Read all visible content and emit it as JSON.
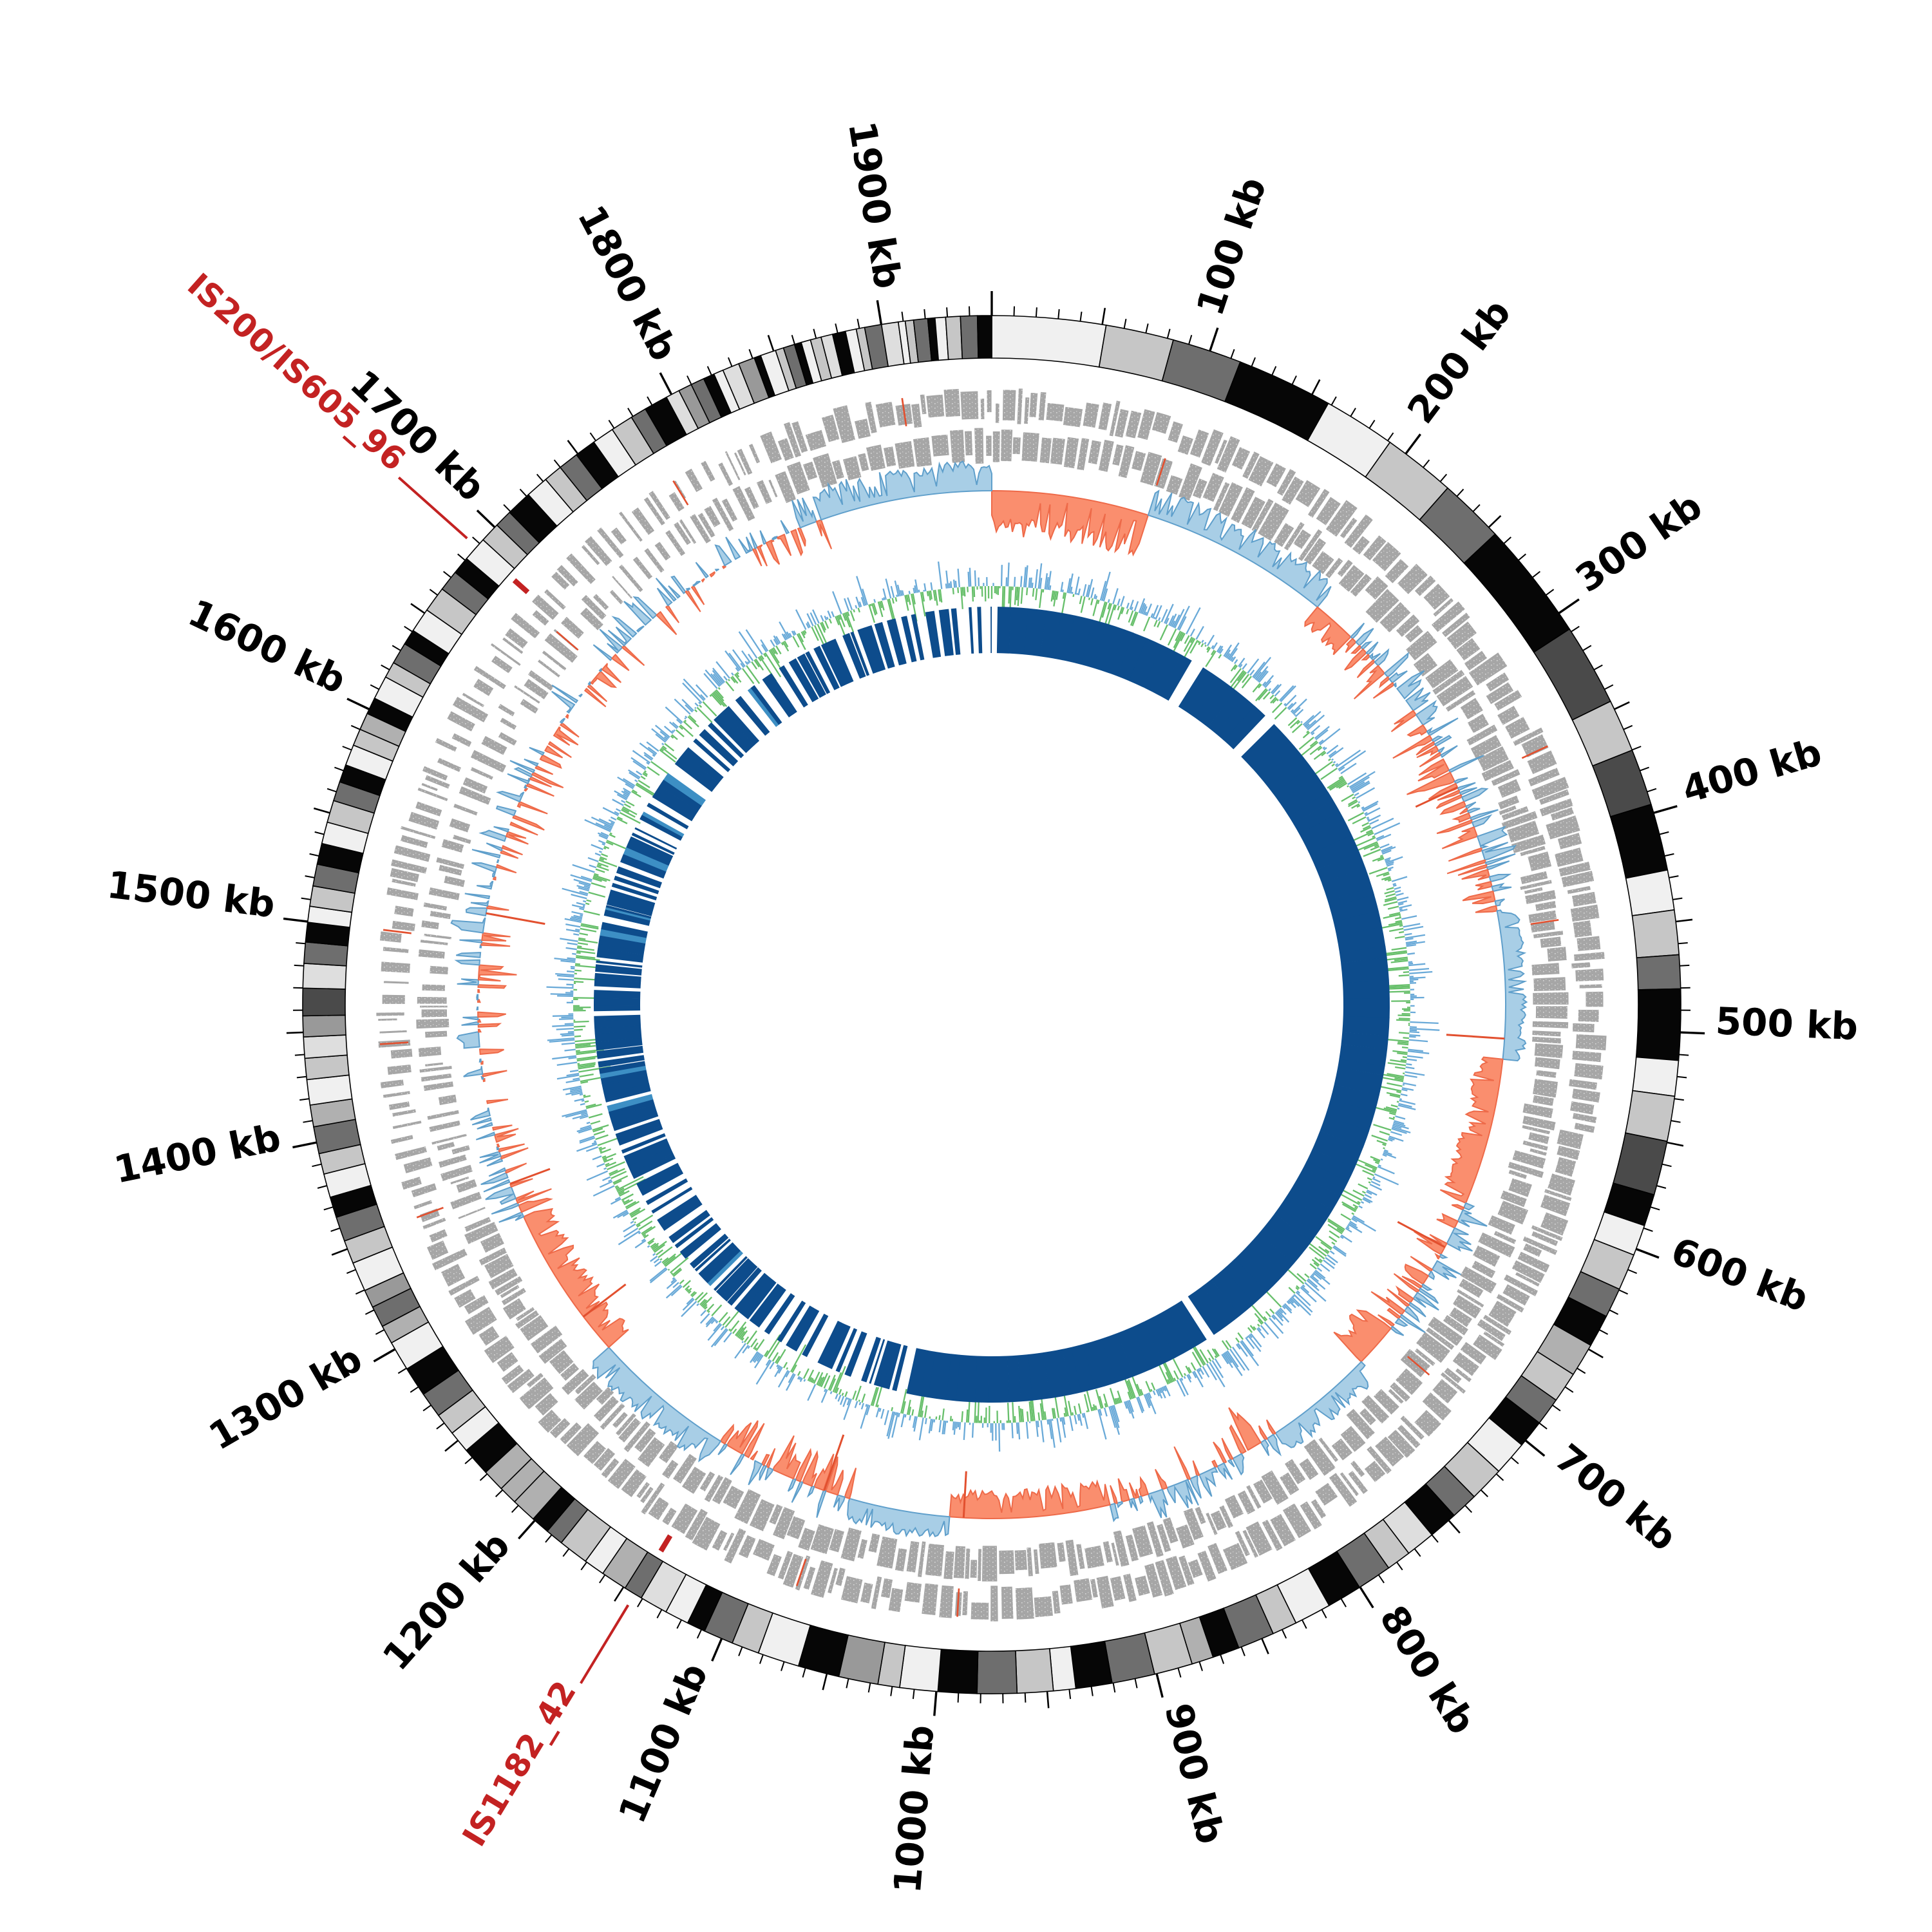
{
  "figure": {
    "kind": "circular genome map",
    "background": "#ffffff"
  },
  "chart_data": {
    "type": "circular_genome_map",
    "genome_length_bp": 1950000,
    "orientation": {
      "zero_position": "top",
      "direction": "clockwise"
    },
    "seed": 7,
    "axis": {
      "unit": "kb",
      "minor_tick_interval_bp": 10000,
      "mid_tick_interval_bp": 50000,
      "major_tick_interval_bp": 100000,
      "tick_labels": [
        {
          "bp": 100000,
          "text": "100 kb"
        },
        {
          "bp": 200000,
          "text": "200 kb"
        },
        {
          "bp": 300000,
          "text": "300 kb"
        },
        {
          "bp": 400000,
          "text": "400 kb"
        },
        {
          "bp": 500000,
          "text": "500 kb"
        },
        {
          "bp": 600000,
          "text": "600 kb"
        },
        {
          "bp": 700000,
          "text": "700 kb"
        },
        {
          "bp": 800000,
          "text": "800 kb"
        },
        {
          "bp": 900000,
          "text": "900 kb"
        },
        {
          "bp": 1000000,
          "text": "1000 kb"
        },
        {
          "bp": 1100000,
          "text": "1100 kb"
        },
        {
          "bp": 1200000,
          "text": "1200 kb"
        },
        {
          "bp": 1300000,
          "text": "1300 kb"
        },
        {
          "bp": 1400000,
          "text": "1400 kb"
        },
        {
          "bp": 1500000,
          "text": "1500 kb"
        },
        {
          "bp": 1600000,
          "text": "1600 kb"
        },
        {
          "bp": 1700000,
          "text": "1700 kb"
        },
        {
          "bp": 1800000,
          "text": "1800 kb"
        },
        {
          "bp": 1900000,
          "text": "1900 kb"
        }
      ]
    },
    "annotations": [
      {
        "label": "IS200/IS605_96",
        "position_bp": 1688000
      },
      {
        "label": "IS1182_42",
        "position_bp": 1144000
      }
    ],
    "tracks": [
      {
        "id": "contig-ring",
        "name": "assembly contigs (grayscale blocks, outermost ring)",
        "palette_cycle": [
          "#c6c6c6",
          "#6e6e6e",
          "#060606",
          "#f0f0f0"
        ],
        "extra_shades": [
          "#999999",
          "#4a4a4a",
          "#dedede",
          "#b0b0b0"
        ],
        "size_regions_kb": [
          [
            0,
            330,
            25,
            60
          ],
          [
            330,
            560,
            14,
            34
          ],
          [
            560,
            870,
            11,
            17
          ],
          [
            870,
            1080,
            9,
            20
          ],
          [
            1080,
            1480,
            8,
            14
          ],
          [
            1480,
            1790,
            7,
            12
          ],
          [
            1790,
            1955,
            3,
            8
          ]
        ]
      },
      {
        "id": "cds-outer",
        "name": "CDS forward strand (gray blocks)",
        "sparse_region_kb": [
          1335,
          1825
        ]
      },
      {
        "id": "cds-inner",
        "name": "CDS reverse strand (gray blocks)",
        "sparse_region_kb": [
          1335,
          1825
        ]
      },
      {
        "id": "skew",
        "name": "GC skew (blue = positive/outward, orange = negative/inward)",
        "features_kb": [
          [
            0,
            95,
            -1,
            0.95
          ],
          [
            95,
            212,
            1,
            0.8
          ],
          [
            212,
            240,
            -1,
            0.5
          ],
          [
            430,
            520,
            1,
            0.6
          ],
          [
            520,
            610,
            -1,
            0.6
          ],
          [
            700,
            726,
            -1,
            0.85
          ],
          [
            726,
            790,
            1,
            0.65
          ],
          [
            905,
            1000,
            -1,
            0.6
          ],
          [
            1000,
            1062,
            1,
            0.65
          ],
          [
            1150,
            1235,
            1,
            0.8
          ],
          [
            1235,
            1330,
            -1,
            0.7
          ],
          [
            1845,
            1952,
            1,
            0.85
          ]
        ],
        "red_spikes_kb": [
          352,
          508,
          992,
          1078,
          1260,
          1352,
          1518,
          640
        ]
      },
      {
        "id": "gc-line",
        "name": "GC content deviation (blue = above/outward, green = below/inward)"
      },
      {
        "id": "inner-ring",
        "name": "reference alignment / coverage ring (navy, white = missing)",
        "gap_regions_kb": [
          [
            0,
            180,
            0.1
          ],
          [
            180,
            1035,
            0.03
          ],
          [
            1035,
            1330,
            0.42
          ],
          [
            1330,
            1595,
            0.22
          ],
          [
            1595,
            1950,
            0.5
          ]
        ],
        "lightblue_slivers": true,
        "zero_gap_kb": [
          0,
          4.5
        ]
      }
    ],
    "gene_red_features_kb": [
      95,
      352,
      441,
      705,
      992,
      1075,
      1352,
      1442,
      1500,
      1682,
      1780,
      1904
    ],
    "colors": {
      "annotation_red": "#c32222",
      "gene_gray": "#a6a6a6",
      "gene_feature_red": "#e2502f",
      "skew_pos_fill": "#a8cee6",
      "skew_pos_stroke": "#5f9fcb",
      "skew_neg_fill": "#fa8e6e",
      "skew_neg_stroke": "#ee6a49",
      "line_pos": "#6aaad8",
      "line_neg": "#67bf6b",
      "ring_navy": "#0d4c8c",
      "ring_lightblue": "#3d8fc4",
      "tick_color": "#000000",
      "label_color": "#000000"
    }
  }
}
